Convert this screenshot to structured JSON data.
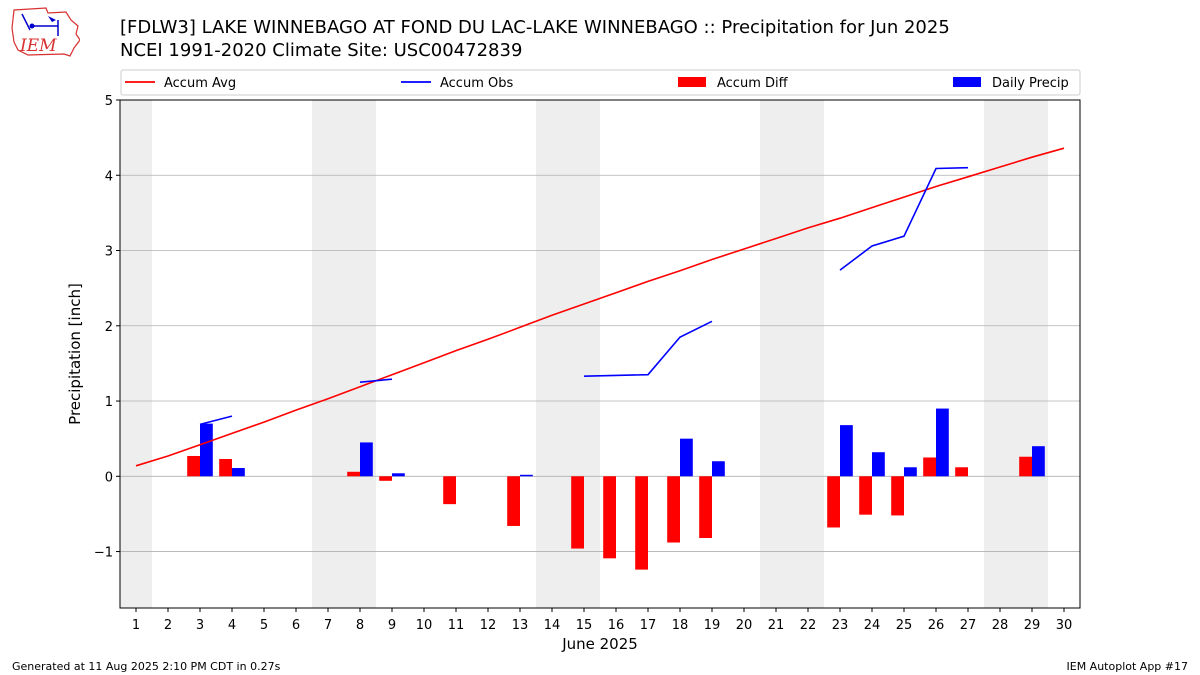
{
  "title_line1": "[FDLW3] LAKE WINNEBAGO  AT FOND DU LAC-LAKE WINNEBAGO :: Precipitation for Jun 2025",
  "title_line2": "NCEI 1991-2020 Climate Site: USC00472839",
  "footer_left": "Generated at 11 Aug 2025 2:10 PM CDT in 0.27s",
  "footer_right": "IEM Autoplot App #17",
  "logo_text": "IEM",
  "chart_data": {
    "type": "bar",
    "xlabel": "June 2025",
    "ylabel": "Precipitation [inch]",
    "xlim": [
      0.5,
      30.5
    ],
    "ylim": [
      -1.75,
      5
    ],
    "yticks": [
      -1,
      0,
      1,
      2,
      3,
      4,
      5
    ],
    "ytick_labels": [
      "−1",
      "0",
      "1",
      "2",
      "3",
      "4",
      "5"
    ],
    "xticks": [
      1,
      2,
      3,
      4,
      5,
      6,
      7,
      8,
      9,
      10,
      11,
      12,
      13,
      14,
      15,
      16,
      17,
      18,
      19,
      20,
      21,
      22,
      23,
      24,
      25,
      26,
      27,
      28,
      29,
      30
    ],
    "grid": "horizontal",
    "weekend_shading": [
      [
        0.5,
        1.5
      ],
      [
        6.5,
        8.5
      ],
      [
        13.5,
        15.5
      ],
      [
        20.5,
        22.5
      ],
      [
        27.5,
        29.5
      ]
    ],
    "legend": {
      "placement": "top",
      "entries": [
        {
          "label": "Accum Avg",
          "kind": "line",
          "color": "#ff0000"
        },
        {
          "label": "Accum Obs",
          "kind": "line",
          "color": "#0000ff"
        },
        {
          "label": "Accum Diff",
          "kind": "bar",
          "color": "#ff0000"
        },
        {
          "label": "Daily Precip",
          "kind": "bar",
          "color": "#0000ff"
        }
      ]
    },
    "series": [
      {
        "name": "Accum Avg",
        "kind": "line",
        "color": "#ff0000",
        "x": [
          1,
          2,
          3,
          4,
          5,
          6,
          7,
          8,
          9,
          10,
          11,
          12,
          13,
          14,
          15,
          16,
          17,
          18,
          19,
          20,
          21,
          22,
          23,
          24,
          25,
          26,
          27,
          28,
          29,
          30
        ],
        "values": [
          0.14,
          0.27,
          0.42,
          0.57,
          0.72,
          0.88,
          1.03,
          1.19,
          1.35,
          1.51,
          1.67,
          1.82,
          1.98,
          2.14,
          2.29,
          2.44,
          2.59,
          2.73,
          2.88,
          3.02,
          3.16,
          3.3,
          3.43,
          3.57,
          3.71,
          3.85,
          3.98,
          4.11,
          4.24,
          4.36
        ]
      },
      {
        "name": "Accum Obs",
        "kind": "line",
        "color": "#0000ff",
        "segments": [
          [
            [
              3,
              0.69
            ],
            [
              4,
              0.8
            ]
          ],
          [
            [
              8,
              1.25
            ],
            [
              9,
              1.29
            ]
          ],
          [
            [
              15,
              1.33
            ],
            [
              17,
              1.35
            ],
            [
              18,
              1.85
            ],
            [
              19,
              2.06
            ]
          ],
          [
            [
              23,
              2.74
            ],
            [
              24,
              3.06
            ],
            [
              25,
              3.19
            ],
            [
              26,
              4.09
            ],
            [
              27,
              4.1
            ]
          ]
        ]
      },
      {
        "name": "Accum Diff",
        "kind": "bar",
        "color": "#ff0000",
        "x": [
          3,
          4,
          8,
          9,
          11,
          13,
          15,
          16,
          17,
          18,
          19,
          23,
          24,
          25,
          26,
          27,
          29
        ],
        "values": [
          0.27,
          0.23,
          0.06,
          -0.06,
          -0.37,
          -0.66,
          -0.96,
          -1.09,
          -1.24,
          -0.88,
          -0.82,
          -0.68,
          -0.51,
          -0.52,
          0.25,
          0.12,
          0.26
        ]
      },
      {
        "name": "Daily Precip",
        "kind": "bar",
        "color": "#0000ff",
        "x": [
          3,
          4,
          8,
          9,
          13,
          18,
          19,
          23,
          24,
          25,
          26,
          29
        ],
        "values": [
          0.7,
          0.11,
          0.45,
          0.04,
          0.02,
          0.5,
          0.2,
          0.68,
          0.32,
          0.12,
          0.9,
          0.4
        ]
      }
    ]
  }
}
